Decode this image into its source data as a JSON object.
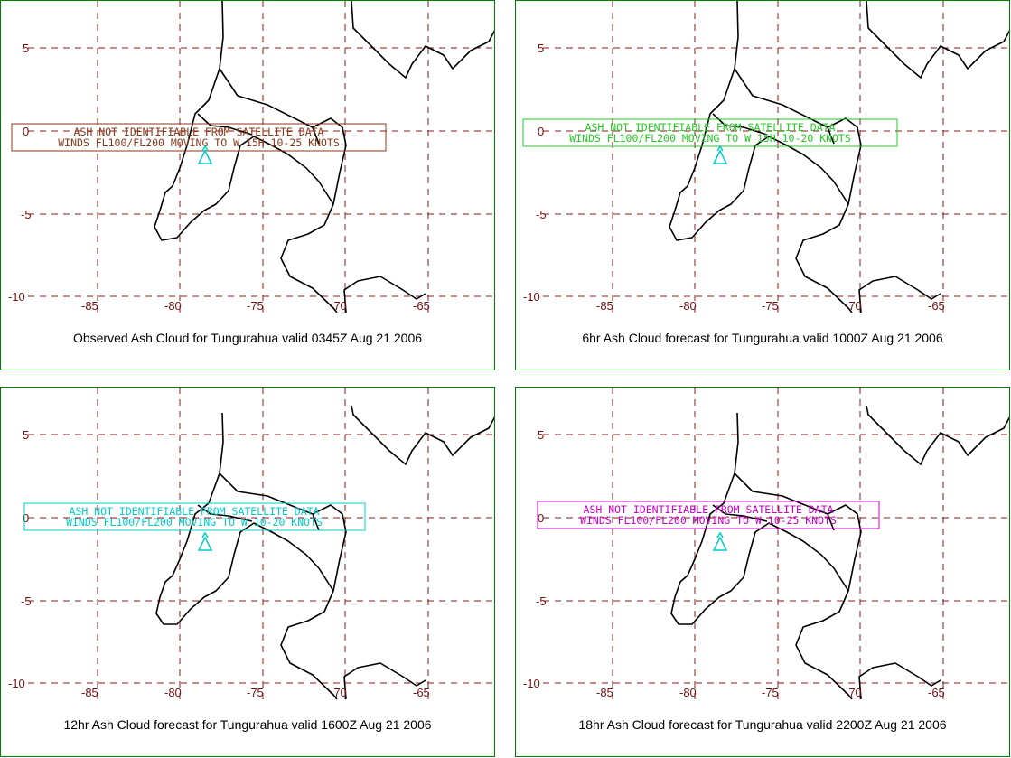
{
  "panels": [
    {
      "caption": "Observed Ash Cloud for Tungurahua valid 0345Z Aug 21 2006",
      "color": "#8b3a1a",
      "box_line1": "ASH NOT IDENTIFIABLE FROM SATELLITE DATA",
      "box_line2": "WINDS FL100/FL200 MOVING TO W 15H 10-25 KNOTS"
    },
    {
      "caption": "6hr Ash Cloud forecast for Tungurahua valid 1000Z Aug 21 2006",
      "color": "#22cc22",
      "box_line1": "ASH NOT IDENTIFIABLE FROM SATELLITE DATA",
      "box_line2": "WINDS FL100/FL200 MOVING TO W 15H 10-20 KNOTS"
    },
    {
      "caption": "12hr Ash Cloud forecast for Tungurahua valid 1600Z Aug 21 2006",
      "color": "#00cccc",
      "box_line1": "ASH NOT IDENTIFIABLE FROM SATELLITE DATA",
      "box_line2": "WINDS FL100/FL200 MOVING TO W 10-20 KNOTS"
    },
    {
      "caption": "18hr Ash Cloud forecast for Tungurahua valid 2200Z Aug 21 2006",
      "color": "#cc00cc",
      "box_line1": "ASH NOT IDENTIFIABLE FROM SATELLITE DATA",
      "box_line2": "WINDS FL100/FL200 MOVING TO W 10-25 KNOTS"
    }
  ],
  "lat_labels": [
    "5",
    "0",
    "-5",
    "-10"
  ],
  "lon_labels": [
    "-85",
    "-80",
    "-75",
    "-70",
    "-65"
  ],
  "volcano_color": "#00cccc",
  "grid_color": "#8b1a1a",
  "volcano_icon": "volcano-icon"
}
